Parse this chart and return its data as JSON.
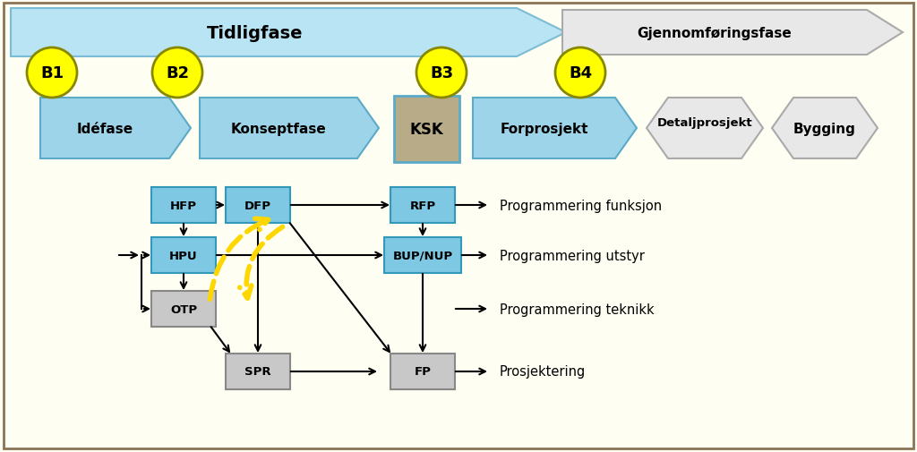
{
  "fig_width": 10.24,
  "fig_height": 5.06,
  "bg_color": "#FFFEF2",
  "border_color": "#8B7355",
  "blue_light": "#B8E4F4",
  "blue_mid": "#7BBDD6",
  "blue_phase_fill": "#9DD4EA",
  "blue_phase_edge": "#5AAAC8",
  "gray_phase_fill": "#E8E8E8",
  "gray_phase_edge": "#AAAAAA",
  "ksk_fill": "#B8AB88",
  "ksk_edge": "#5AAAC8",
  "yellow_fill": "#FFFF00",
  "yellow_edge": "#888800",
  "box_blue_fill": "#7EC8E3",
  "box_blue_edge": "#3399BB",
  "box_gray_fill": "#C8C8C8",
  "box_gray_edge": "#888888",
  "arrow_yellow": "#FFD700",
  "labels": {
    "tidligfase": "Tidligfase",
    "gjennomforingsfase": "Gjennomføringsfase",
    "idefase": "Idéfase",
    "konseptfase": "Konseptfase",
    "ksk": "KSK",
    "forprosjekt": "Forprosjekt",
    "detaljprosjekt": "Detaljprosjekt",
    "bygging": "Bygging",
    "b1": "B1",
    "b2": "B2",
    "b3": "B3",
    "b4": "B4",
    "hfp": "HFP",
    "dfp": "DFP",
    "hpu": "HPU",
    "otp": "OTP",
    "rfp": "RFP",
    "bup": "BUP/NUP",
    "spr": "SPR",
    "fp": "FP",
    "prog_funksjon": "Programmering funksjon",
    "prog_utstyr": "Programmering utstyr",
    "prog_teknikk": "Programmering teknikk",
    "prosjektering": "Prosjektering"
  }
}
